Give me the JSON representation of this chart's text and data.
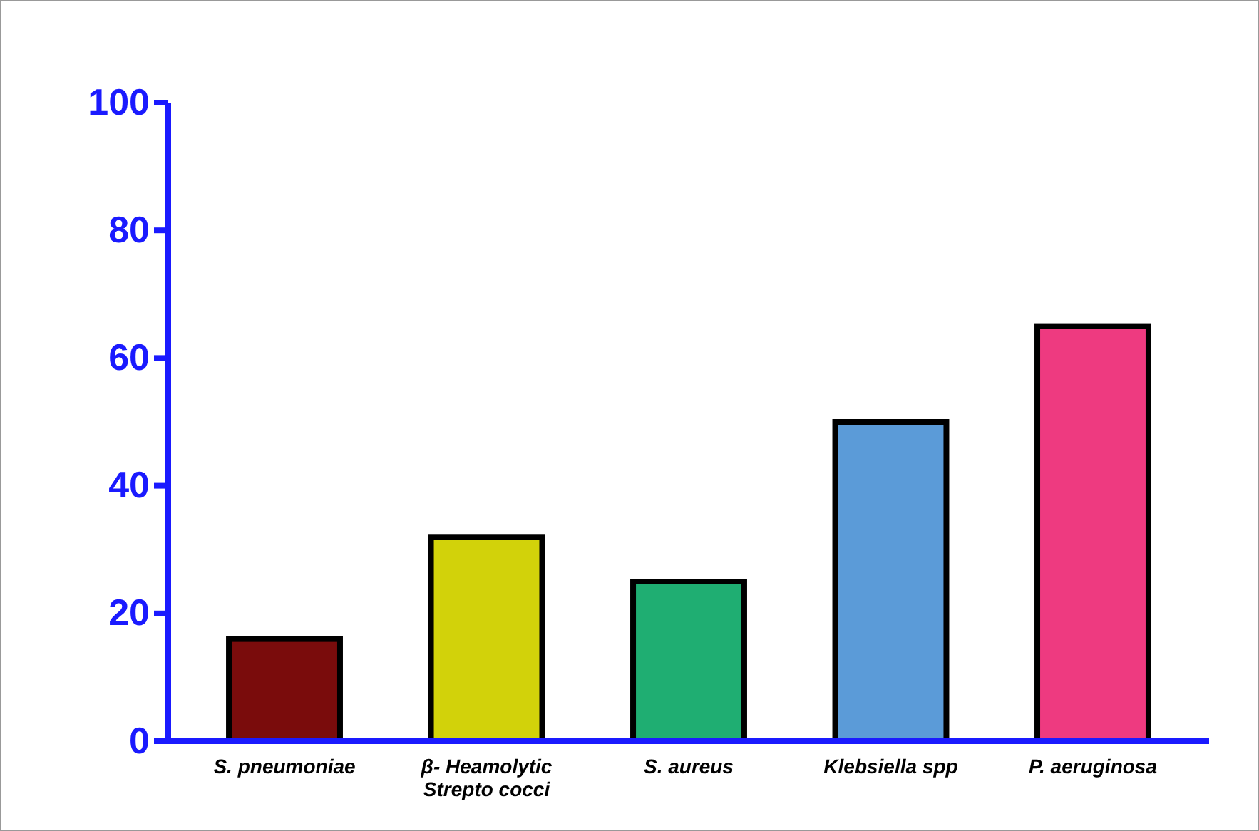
{
  "chart_data": {
    "type": "bar",
    "categories": [
      "S. pneumoniae",
      "β- Heamolytic Strepto cocci",
      "S. aureus",
      "Klebsiella spp",
      "P. aeruginosa"
    ],
    "values": [
      16,
      32,
      25,
      50,
      65
    ],
    "colors": [
      "#7a0c0c",
      "#d2d20a",
      "#1fae72",
      "#5b9bd8",
      "#ee3a80"
    ],
    "ylim": [
      0,
      100
    ],
    "yticks": [
      0,
      20,
      40,
      60,
      80,
      100
    ],
    "grid": false
  }
}
